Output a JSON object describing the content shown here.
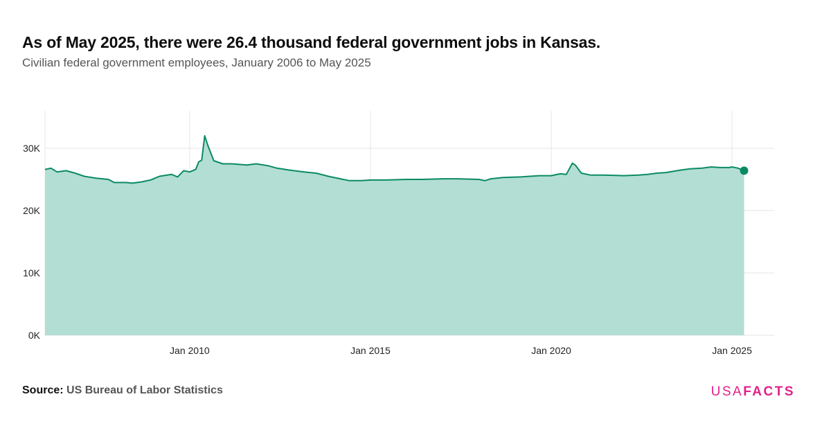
{
  "header": {
    "title": "As of May 2025, there were 26.4 thousand federal government jobs in Kansas.",
    "subtitle": "Civilian federal government employees, January 2006 to May 2025"
  },
  "footer": {
    "source_label": "Source:",
    "source_value": "US Bureau of Labor Statistics",
    "logo_part1": "USA",
    "logo_part2": "FACTS"
  },
  "colors": {
    "line": "#0a8a63",
    "area": "#b3ded3",
    "logo": "#e0218a",
    "grid": "#e6e6e6"
  },
  "chart_data": {
    "type": "area",
    "title": "As of May 2025, there were 26.4 thousand federal government jobs in Kansas.",
    "subtitle": "Civilian federal government employees, January 2006 to May 2025",
    "xlabel": "",
    "ylabel": "",
    "ylim": [
      0,
      36000
    ],
    "xlim": [
      "2006-01",
      "2025-05"
    ],
    "yticks": [
      0,
      10000,
      20000,
      30000
    ],
    "ytick_labels": [
      "0K",
      "10K",
      "20K",
      "30K"
    ],
    "xticks": [
      "2010-01",
      "2015-01",
      "2020-01",
      "2025-01"
    ],
    "xtick_labels": [
      "Jan 2010",
      "Jan 2015",
      "Jan 2020",
      "Jan 2025"
    ],
    "grid": true,
    "last_point_marker": true,
    "series": [
      {
        "points": [
          [
            "2006-01",
            26600
          ],
          [
            "2006-03",
            26800
          ],
          [
            "2006-05",
            26200
          ],
          [
            "2006-08",
            26400
          ],
          [
            "2006-11",
            26000
          ],
          [
            "2007-02",
            25500
          ],
          [
            "2007-06",
            25200
          ],
          [
            "2007-10",
            25000
          ],
          [
            "2007-12",
            24500
          ],
          [
            "2008-04",
            24500
          ],
          [
            "2008-06",
            24400
          ],
          [
            "2008-09",
            24600
          ],
          [
            "2008-12",
            24900
          ],
          [
            "2009-03",
            25500
          ],
          [
            "2009-07",
            25800
          ],
          [
            "2009-09",
            25400
          ],
          [
            "2009-11",
            26400
          ],
          [
            "2010-01",
            26200
          ],
          [
            "2010-03",
            26600
          ],
          [
            "2010-04",
            27800
          ],
          [
            "2010-05",
            28100
          ],
          [
            "2010-06",
            32000
          ],
          [
            "2010-07",
            30500
          ],
          [
            "2010-09",
            28000
          ],
          [
            "2010-12",
            27500
          ],
          [
            "2011-03",
            27500
          ],
          [
            "2011-08",
            27300
          ],
          [
            "2011-11",
            27500
          ],
          [
            "2012-03",
            27200
          ],
          [
            "2012-06",
            26800
          ],
          [
            "2012-10",
            26500
          ],
          [
            "2013-03",
            26200
          ],
          [
            "2013-07",
            26000
          ],
          [
            "2013-11",
            25500
          ],
          [
            "2014-03",
            25100
          ],
          [
            "2014-06",
            24800
          ],
          [
            "2014-10",
            24800
          ],
          [
            "2015-01",
            24900
          ],
          [
            "2015-06",
            24900
          ],
          [
            "2016-01",
            25000
          ],
          [
            "2016-06",
            25000
          ],
          [
            "2017-01",
            25100
          ],
          [
            "2017-06",
            25100
          ],
          [
            "2018-01",
            25000
          ],
          [
            "2018-03",
            24800
          ],
          [
            "2018-05",
            25100
          ],
          [
            "2018-09",
            25300
          ],
          [
            "2019-03",
            25400
          ],
          [
            "2019-06",
            25500
          ],
          [
            "2019-09",
            25600
          ],
          [
            "2020-01",
            25600
          ],
          [
            "2020-04",
            25900
          ],
          [
            "2020-06",
            25800
          ],
          [
            "2020-08",
            27600
          ],
          [
            "2020-09",
            27300
          ],
          [
            "2020-11",
            26000
          ],
          [
            "2021-02",
            25700
          ],
          [
            "2021-06",
            25700
          ],
          [
            "2022-01",
            25600
          ],
          [
            "2022-06",
            25700
          ],
          [
            "2022-09",
            25800
          ],
          [
            "2022-12",
            26000
          ],
          [
            "2023-03",
            26100
          ],
          [
            "2023-08",
            26500
          ],
          [
            "2023-11",
            26700
          ],
          [
            "2024-03",
            26800
          ],
          [
            "2024-06",
            27000
          ],
          [
            "2024-09",
            26900
          ],
          [
            "2024-12",
            26900
          ],
          [
            "2025-01",
            27000
          ],
          [
            "2025-03",
            26800
          ],
          [
            "2025-05",
            26400
          ]
        ]
      }
    ]
  }
}
